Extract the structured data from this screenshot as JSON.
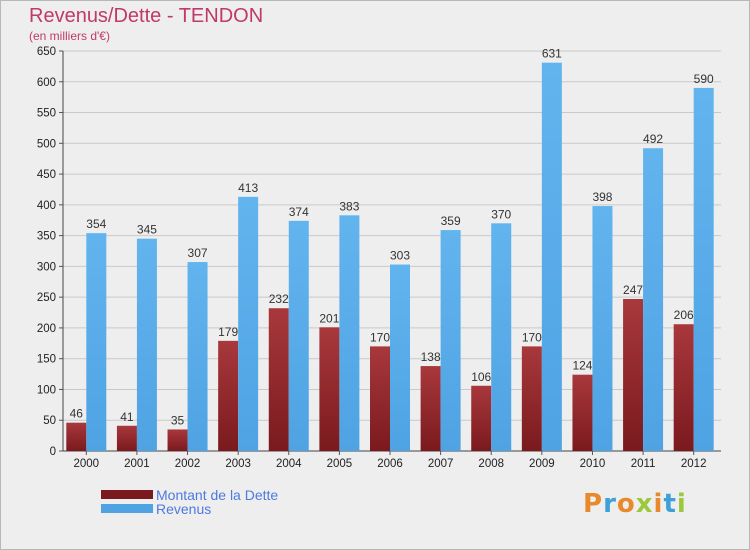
{
  "title": "Revenus/Dette - TENDON",
  "subtitle": "(en milliers d'€)",
  "brand": [
    "P",
    "r",
    "o",
    "x",
    "i",
    "t",
    "i"
  ],
  "colors": {
    "debt": "#7a1a1e",
    "debt_light": "#a8383c",
    "revenue": "#4fa3e3",
    "revenue_light": "#62b4ee",
    "grid": "#c9c9c9",
    "title": "#c0396b",
    "legend_text": "#4d79e0",
    "brand": [
      "#e8892b",
      "#3da0d8",
      "#e8892b",
      "#9bc83c",
      "#e8892b",
      "#3da0d8",
      "#9bc83c"
    ]
  },
  "chart_data": {
    "type": "bar",
    "title": "Revenus/Dette - TENDON",
    "ylabel": "(en milliers d'€)",
    "xlabel": "",
    "ylim": [
      0,
      650
    ],
    "yticks": [
      0,
      50,
      100,
      150,
      200,
      250,
      300,
      350,
      400,
      450,
      500,
      550,
      600,
      650
    ],
    "grid": true,
    "legend_position": "bottom-left",
    "categories": [
      "2000",
      "2001",
      "2002",
      "2003",
      "2004",
      "2005",
      "2006",
      "2007",
      "2008",
      "2009",
      "2010",
      "2011",
      "2012"
    ],
    "series": [
      {
        "name": "Montant de la Dette",
        "values": [
          46,
          41,
          35,
          179,
          232,
          201,
          170,
          138,
          106,
          170,
          124,
          247,
          206
        ]
      },
      {
        "name": "Revenus",
        "values": [
          354,
          345,
          307,
          413,
          374,
          383,
          303,
          359,
          370,
          631,
          398,
          492,
          590
        ]
      }
    ]
  }
}
